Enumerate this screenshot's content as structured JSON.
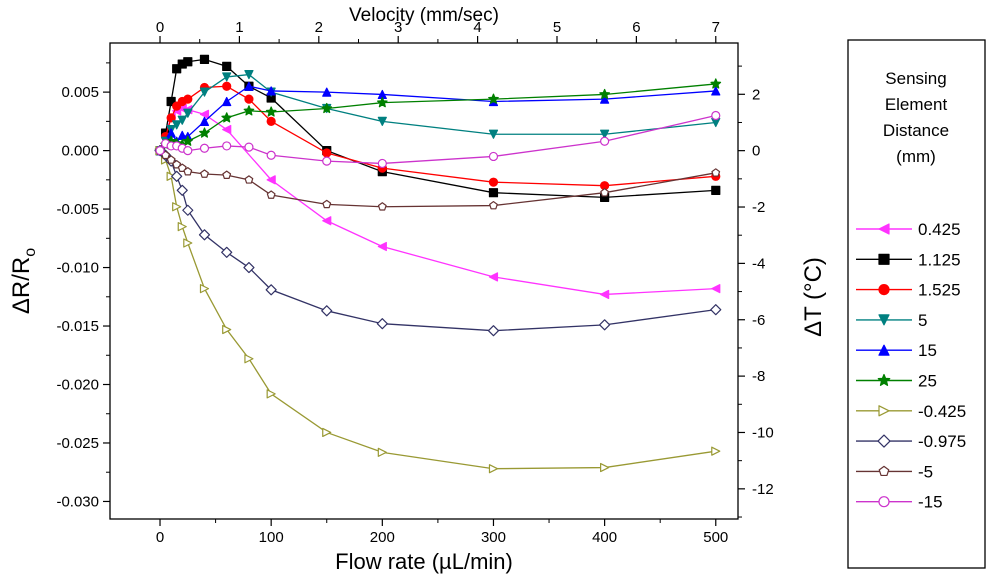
{
  "chart_data": {
    "type": "line",
    "xlabel": "Flow rate (µL/min)",
    "ylabel_left": "ΔR/R",
    "ylabel_left_subscript": "o",
    "ylabel_right": "ΔT (°C)",
    "top_axis_label": "Velocity (mm/sec)",
    "xlim": [
      -45,
      520
    ],
    "ylim_left": [
      -0.0315,
      0.0092
    ],
    "ylim_right": [
      -13.07,
      3.82
    ],
    "x_ticks": [
      0,
      100,
      200,
      300,
      400,
      500
    ],
    "x_tick_labels": [
      "0",
      "100",
      "200",
      "300",
      "400",
      "500"
    ],
    "y_left_ticks": [
      0.005,
      0.0,
      -0.005,
      -0.01,
      -0.015,
      -0.02,
      -0.025,
      -0.03
    ],
    "y_left_tick_labels": [
      "0.005",
      "0.000",
      "-0.005",
      "-0.010",
      "-0.015",
      "-0.020",
      "-0.025",
      "-0.030"
    ],
    "y_right_ticks": [
      2,
      0,
      -2,
      -4,
      -6,
      -8,
      -10,
      -12
    ],
    "y_right_tick_labels": [
      "2",
      "0",
      "-2",
      "-4",
      "-6",
      "-8",
      "-10",
      "-12"
    ],
    "top_ticks": [
      0,
      1,
      2,
      3,
      4,
      5,
      6,
      7
    ],
    "top_tick_labels": [
      "0",
      "1",
      "2",
      "3",
      "4",
      "5",
      "6",
      "7"
    ],
    "top_tick_flow_per_unit": 71.43,
    "legend": {
      "title_lines": [
        "Sensing",
        "Element",
        "Distance",
        "(mm)"
      ],
      "placement": "right"
    },
    "series": [
      {
        "name": "0.425",
        "color": "#ff33ff",
        "marker": "triangle-left",
        "filled": true,
        "x": [
          0,
          5,
          10,
          15,
          20,
          25,
          40,
          60,
          100,
          150,
          200,
          300,
          400,
          500
        ],
        "y": [
          0.0,
          0.0015,
          0.0028,
          0.0034,
          0.0036,
          0.0035,
          0.0031,
          0.0018,
          -0.0025,
          -0.006,
          -0.0082,
          -0.0108,
          -0.0123,
          -0.0118
        ]
      },
      {
        "name": "1.125",
        "color": "#000000",
        "marker": "square",
        "filled": true,
        "x": [
          0,
          5,
          10,
          15,
          20,
          25,
          40,
          60,
          80,
          100,
          150,
          200,
          300,
          400,
          500
        ],
        "y": [
          0.0,
          0.0015,
          0.0042,
          0.007,
          0.0074,
          0.0076,
          0.0078,
          0.0072,
          0.0055,
          0.0045,
          0.0,
          -0.0018,
          -0.0036,
          -0.004,
          -0.0034
        ]
      },
      {
        "name": "1.525",
        "color": "#ff0000",
        "marker": "circle",
        "filled": true,
        "x": [
          0,
          5,
          10,
          15,
          20,
          25,
          40,
          60,
          80,
          100,
          150,
          200,
          300,
          400,
          500
        ],
        "y": [
          0.0,
          0.0012,
          0.0028,
          0.0038,
          0.0042,
          0.0044,
          0.0054,
          0.0055,
          0.0044,
          0.0025,
          -0.0002,
          -0.0015,
          -0.0027,
          -0.003,
          -0.0022
        ]
      },
      {
        "name": "5",
        "color": "#008080",
        "marker": "triangle-down",
        "filled": true,
        "x": [
          0,
          5,
          10,
          15,
          20,
          25,
          40,
          60,
          80,
          100,
          150,
          200,
          300,
          400,
          500
        ],
        "y": [
          0.0,
          0.0008,
          0.0018,
          0.0022,
          0.0026,
          0.0032,
          0.005,
          0.0063,
          0.0065,
          0.005,
          0.0036,
          0.0025,
          0.0014,
          0.0014,
          0.0024
        ]
      },
      {
        "name": "15",
        "color": "#0000ff",
        "marker": "triangle-up",
        "filled": true,
        "x": [
          0,
          5,
          10,
          15,
          20,
          25,
          40,
          60,
          80,
          100,
          150,
          200,
          300,
          400,
          500
        ],
        "y": [
          0.0,
          0.0006,
          0.0015,
          0.0008,
          0.0013,
          0.0012,
          0.0025,
          0.0042,
          0.0055,
          0.0051,
          0.005,
          0.0048,
          0.0042,
          0.0044,
          0.0051
        ]
      },
      {
        "name": "25",
        "color": "#008000",
        "marker": "star",
        "filled": true,
        "x": [
          0,
          5,
          10,
          15,
          20,
          25,
          40,
          60,
          80,
          100,
          150,
          200,
          300,
          400,
          500
        ],
        "y": [
          0.0,
          0.0005,
          0.0008,
          0.0006,
          0.0005,
          0.0008,
          0.0015,
          0.0028,
          0.0034,
          0.0033,
          0.0036,
          0.0041,
          0.0044,
          0.0048,
          0.0057
        ]
      },
      {
        "name": "-0.425",
        "color": "#999933",
        "marker": "triangle-right",
        "filled": false,
        "x": [
          0,
          5,
          10,
          15,
          20,
          25,
          40,
          60,
          80,
          100,
          150,
          200,
          300,
          400,
          500
        ],
        "y": [
          0.0,
          -0.0008,
          -0.0022,
          -0.0048,
          -0.0065,
          -0.0079,
          -0.0118,
          -0.0153,
          -0.0178,
          -0.0208,
          -0.0241,
          -0.0258,
          -0.0272,
          -0.0271,
          -0.0257
        ]
      },
      {
        "name": "-0.975",
        "color": "#333366",
        "marker": "diamond",
        "filled": false,
        "x": [
          0,
          5,
          10,
          15,
          20,
          25,
          40,
          60,
          80,
          100,
          150,
          200,
          300,
          400,
          500
        ],
        "y": [
          0.0,
          -0.0004,
          -0.0009,
          -0.0022,
          -0.0034,
          -0.0051,
          -0.0072,
          -0.0087,
          -0.01,
          -0.0119,
          -0.0137,
          -0.0148,
          -0.0154,
          -0.0149,
          -0.0136
        ]
      },
      {
        "name": "-5",
        "color": "#663333",
        "marker": "pentagon",
        "filled": false,
        "x": [
          0,
          5,
          10,
          15,
          20,
          25,
          40,
          60,
          80,
          100,
          150,
          200,
          300,
          400,
          500
        ],
        "y": [
          0.0,
          -0.0004,
          -0.0008,
          -0.0012,
          -0.0015,
          -0.0018,
          -0.002,
          -0.0021,
          -0.0025,
          -0.0038,
          -0.0046,
          -0.0048,
          -0.0047,
          -0.0036,
          -0.0019
        ]
      },
      {
        "name": "-15",
        "color": "#cc33cc",
        "marker": "circle",
        "filled": false,
        "x": [
          0,
          5,
          10,
          15,
          20,
          25,
          40,
          60,
          80,
          100,
          150,
          200,
          300,
          400,
          500
        ],
        "y": [
          0.0,
          0.0006,
          0.0004,
          0.0004,
          0.0002,
          0.0,
          0.0002,
          0.0004,
          0.0003,
          -0.0004,
          -0.0009,
          -0.0011,
          -0.0005,
          0.0008,
          0.003
        ]
      }
    ]
  }
}
